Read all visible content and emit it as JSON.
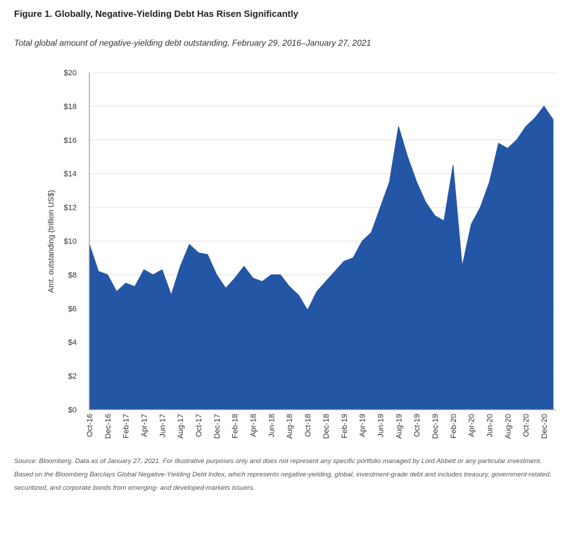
{
  "chart_data": {
    "type": "area",
    "title": "Figure 1. Globally, Negative-Yielding Debt Has Risen Significantly",
    "subtitle": "Total global amount of negative-yielding debt outstanding, February 29, 2016–January 27, 2021",
    "y_label": "Amt. outstanding (trillion US$)",
    "source": "Source: Bloomberg. Data as of January 27, 2021. For illustrative purposes only and does not represent any specific portfolio managed by Lord Abbett or any particular investment. Based on the Bloomberg Barclays Global Negative-Yielding Debt Index, which represents negative-yielding, global, investment-grade debt and includes treasury, government-related, securitized, and corporate bonds from emerging- and developed-markets issuers.",
    "color": "#2456a6",
    "grid": true,
    "categories": [
      "Oct-16",
      null,
      "Dec-16",
      null,
      "Feb-17",
      null,
      "Apr-17",
      null,
      "Jun-17",
      null,
      "Aug-17",
      null,
      "Oct-17",
      null,
      "Dec-17",
      null,
      "Feb-18",
      null,
      "Apr-18",
      null,
      "Jun-18",
      null,
      "Aug-18",
      null,
      "Oct-18",
      null,
      "Dec-18",
      null,
      "Feb-19",
      null,
      "Apr-19",
      null,
      "Jun-19",
      null,
      "Aug-19",
      null,
      "Oct-19",
      null,
      "Dec-19",
      null,
      "Feb-20",
      null,
      "Apr-20",
      null,
      "Jun-20",
      null,
      "Aug-20",
      null,
      "Oct-20",
      null,
      "Dec-20",
      null
    ],
    "values": [
      9.8,
      8.2,
      8.0,
      7.0,
      7.5,
      7.3,
      8.3,
      8.0,
      8.3,
      6.8,
      8.5,
      9.8,
      9.3,
      9.2,
      8.0,
      7.2,
      7.8,
      8.5,
      7.8,
      7.6,
      8.0,
      8.0,
      7.3,
      6.8,
      5.9,
      7.0,
      7.6,
      8.2,
      8.8,
      9.0,
      10.0,
      10.5,
      12.0,
      13.5,
      16.8,
      15.0,
      13.5,
      12.3,
      11.5,
      11.2,
      14.5,
      8.5,
      11.0,
      12.0,
      13.5,
      15.8,
      15.5,
      16.0,
      16.8,
      17.3,
      18.0,
      17.2
    ],
    "ylim": [
      0,
      20
    ],
    "yticks": [
      {
        "value": 0,
        "label": "$0"
      },
      {
        "value": 2,
        "label": "$2"
      },
      {
        "value": 4,
        "label": "$4"
      },
      {
        "value": 6,
        "label": "$6"
      },
      {
        "value": 8,
        "label": "$8"
      },
      {
        "value": 10,
        "label": "$10"
      },
      {
        "value": 12,
        "label": "$12"
      },
      {
        "value": 14,
        "label": "$14"
      },
      {
        "value": 16,
        "label": "$16"
      },
      {
        "value": 18,
        "label": "$18"
      },
      {
        "value": 20,
        "label": "$20"
      }
    ]
  }
}
